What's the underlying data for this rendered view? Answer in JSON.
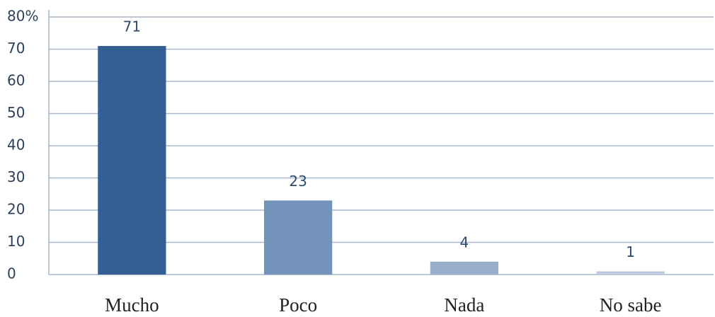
{
  "chart_data": {
    "type": "bar",
    "categories": [
      "Mucho",
      "Poco",
      "Nada",
      "No sabe"
    ],
    "values": [
      71,
      23,
      4,
      1
    ],
    "colors": [
      "#335f94",
      "#7393bb",
      "#9aadca",
      "#bccbdf"
    ],
    "ylim": [
      0,
      80
    ],
    "yticks": [
      0,
      10,
      20,
      30,
      40,
      50,
      60,
      70,
      {
        "value": 80,
        "label": "80%"
      }
    ],
    "grid": true
  }
}
